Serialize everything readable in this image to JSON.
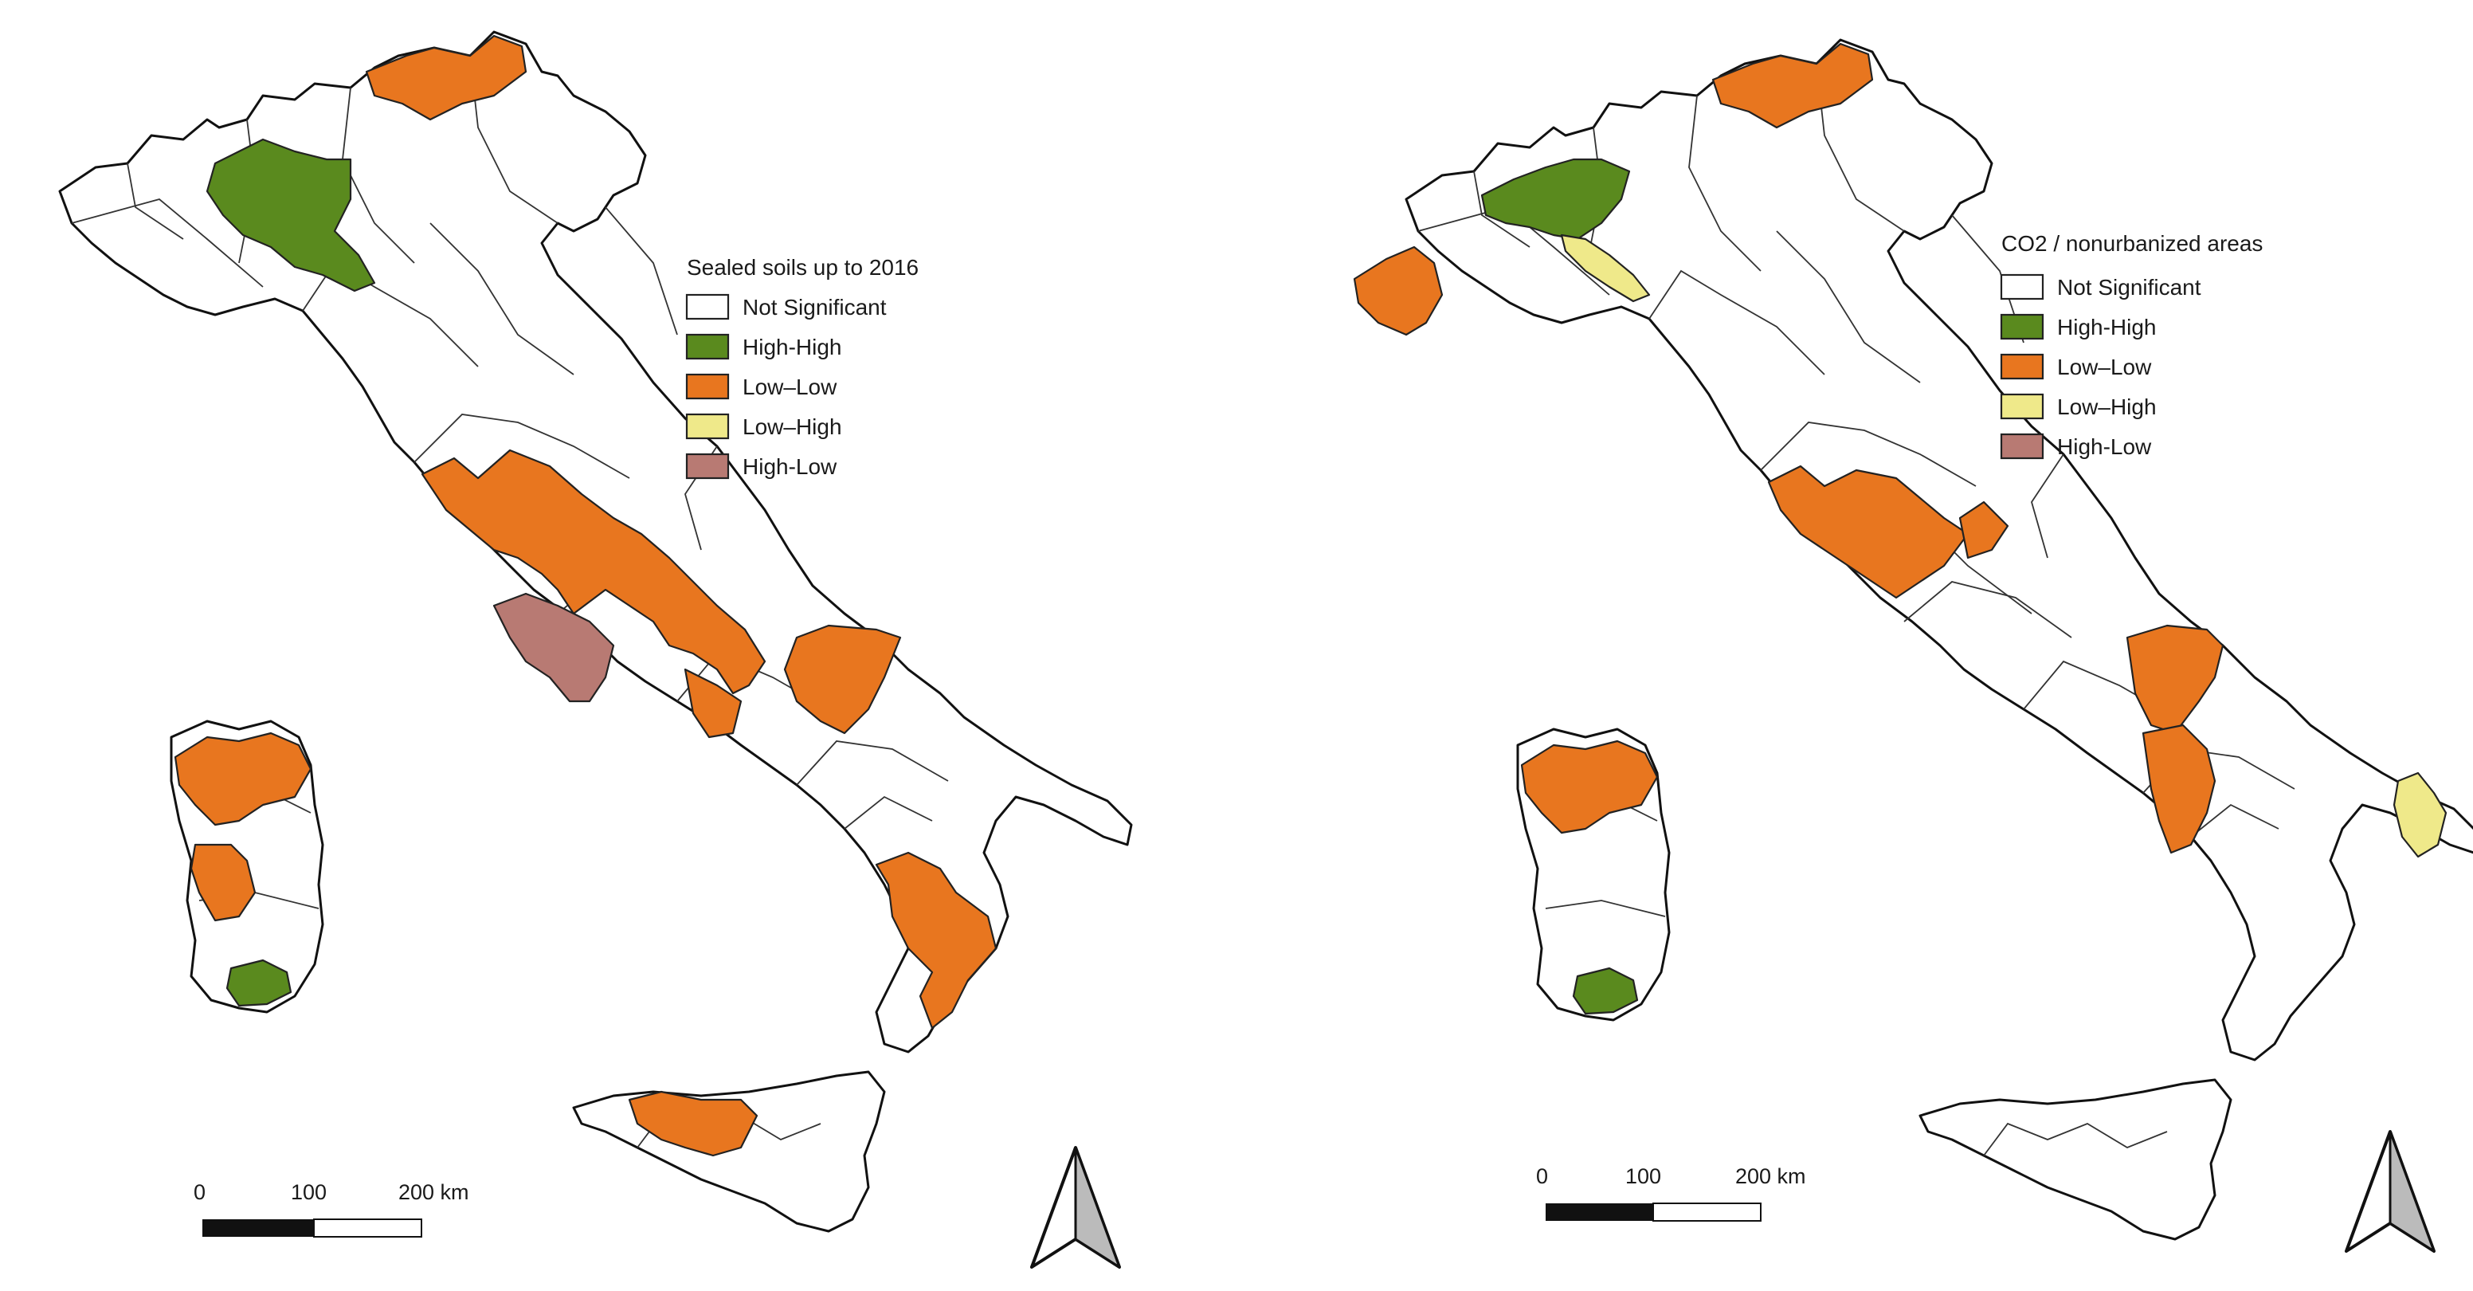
{
  "maps": [
    {
      "legend": {
        "title": "Sealed soils up to 2016",
        "items": [
          {
            "label": "Not Significant",
            "color": "#ffffff"
          },
          {
            "label": "High-High",
            "color": "#5a8a1e"
          },
          {
            "label": "Low–Low",
            "color": "#e8761f"
          },
          {
            "label": "Low–High",
            "color": "#efe98a"
          },
          {
            "label": "High-Low",
            "color": "#b87a73"
          }
        ]
      },
      "scalebar": {
        "ticks": [
          "0",
          "100",
          "200 km"
        ]
      },
      "north_arrow": "north-arrow-icon"
    },
    {
      "legend": {
        "title": "CO2 / nonurbanized areas",
        "items": [
          {
            "label": "Not Significant",
            "color": "#ffffff"
          },
          {
            "label": "High-High",
            "color": "#5a8a1e"
          },
          {
            "label": "Low–Low",
            "color": "#e8761f"
          },
          {
            "label": "Low–High",
            "color": "#efe98a"
          },
          {
            "label": "High-Low",
            "color": "#b87a73"
          }
        ]
      },
      "scalebar": {
        "ticks": [
          "0",
          "100",
          "200 km"
        ]
      },
      "north_arrow": "north-arrow-icon"
    }
  ]
}
